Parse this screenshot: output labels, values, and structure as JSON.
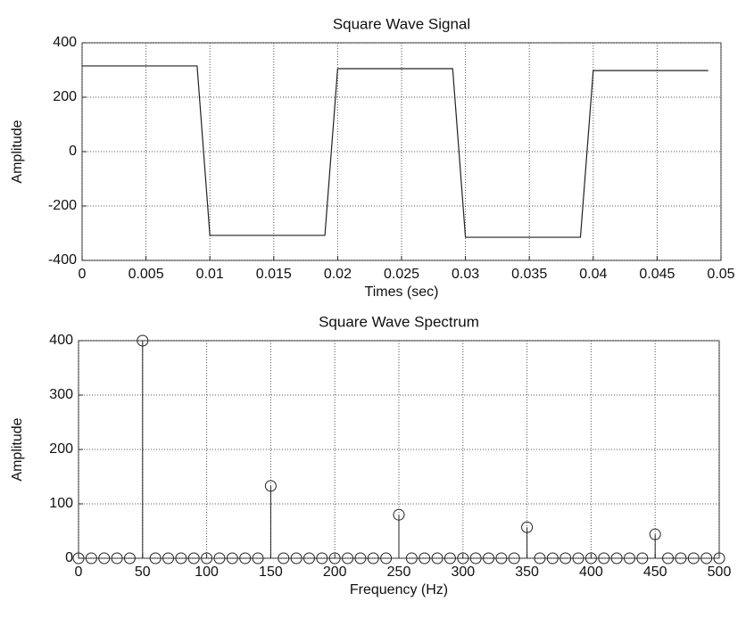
{
  "chart_data": [
    {
      "type": "line",
      "title": "Square Wave Signal",
      "x_label": "Times (sec)",
      "y_label": "Amplitude",
      "x": [
        0,
        0.009,
        0.01,
        0.019,
        0.02,
        0.029,
        0.03,
        0.039,
        0.04,
        0.049
      ],
      "values": [
        315,
        315,
        -308,
        -308,
        305,
        305,
        -315,
        -315,
        298,
        298
      ],
      "color": "#222222",
      "xlim": [
        0,
        0.05
      ],
      "ylim": [
        -400,
        400
      ],
      "xticks": [
        0,
        0.005,
        0.01,
        0.015,
        0.02,
        0.025,
        0.03,
        0.035,
        0.04,
        0.045,
        0.05
      ],
      "yticks": [
        -400,
        -200,
        0,
        200,
        400
      ],
      "grid": true
    },
    {
      "type": "stem",
      "title": "Square Wave Spectrum",
      "x_label": "Frequency (Hz)",
      "y_label": "Amplitude",
      "x": [
        0,
        10,
        20,
        30,
        40,
        50,
        60,
        70,
        80,
        90,
        100,
        110,
        120,
        130,
        140,
        150,
        160,
        170,
        180,
        190,
        200,
        210,
        220,
        230,
        240,
        250,
        260,
        270,
        280,
        290,
        300,
        310,
        320,
        330,
        340,
        350,
        360,
        370,
        380,
        390,
        400,
        410,
        420,
        430,
        440,
        450,
        460,
        470,
        480,
        490,
        500
      ],
      "values": [
        0,
        0,
        0,
        0,
        0,
        400,
        0,
        0,
        0,
        0,
        0,
        0,
        0,
        0,
        0,
        133,
        0,
        0,
        0,
        0,
        0,
        0,
        0,
        0,
        0,
        80,
        0,
        0,
        0,
        0,
        0,
        0,
        0,
        0,
        0,
        57,
        0,
        0,
        0,
        0,
        0,
        0,
        0,
        0,
        0,
        44,
        0,
        0,
        0,
        0,
        0
      ],
      "color": "#222222",
      "xlim": [
        0,
        500
      ],
      "ylim": [
        0,
        400
      ],
      "xticks": [
        0,
        50,
        100,
        150,
        200,
        250,
        300,
        350,
        400,
        450,
        500
      ],
      "yticks": [
        0,
        100,
        200,
        300,
        400
      ],
      "grid": true
    }
  ]
}
